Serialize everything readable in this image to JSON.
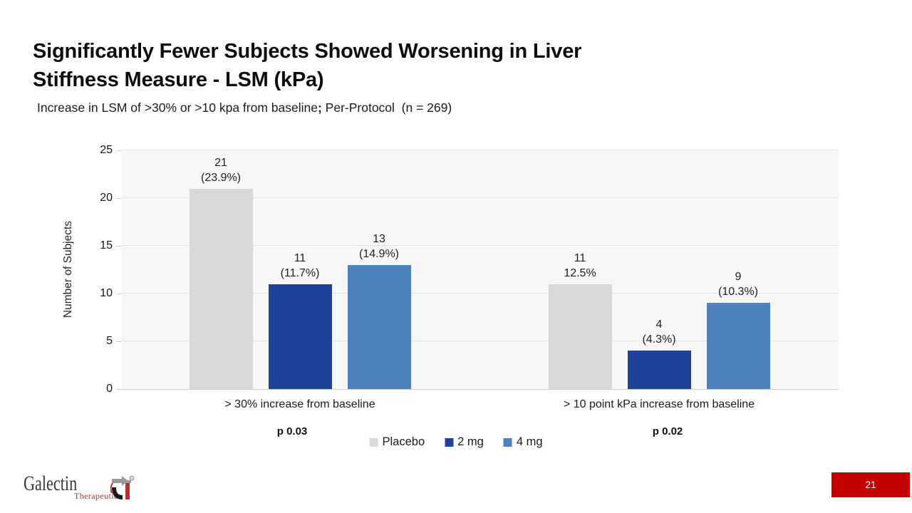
{
  "slide": {
    "title_line1": "Significantly Fewer Subjects Showed Worsening in Liver",
    "title_line2": "Stiffness Measure - LSM (kPa)",
    "subtitle_main": "Increase in LSM of >30% or >10 kpa from baseline",
    "subtitle_semicolon": ";",
    "subtitle_rest": " Per-Protocol  (n = 269)",
    "page_number": "21"
  },
  "logo": {
    "name": "Galectin",
    "sub": "Therapeutics",
    "registered": "®"
  },
  "colors": {
    "placebo": "#d9d9d9",
    "dose_2mg": "#1e4499",
    "dose_4mg": "#4f81bd",
    "page_box_red": "#c40000",
    "logo_red": "#b03232",
    "plot_background": "#f7f7f7",
    "gridline": "#e3e3e3"
  },
  "chart_data": {
    "type": "bar",
    "title": "",
    "xlabel": "",
    "ylabel": "Number of Subjects",
    "ylim": [
      0,
      25
    ],
    "yticks": [
      0,
      5,
      10,
      15,
      20,
      25
    ],
    "grid": true,
    "legend_position": "bottom-center",
    "categories": [
      "> 30% increase from baseline",
      "> 10 point kPa increase from baseline"
    ],
    "p_values": [
      "p 0.03",
      "p 0.02"
    ],
    "series": [
      {
        "name": "Placebo",
        "color": "#d9d9d9",
        "values": [
          21,
          11
        ],
        "labels": [
          [
            "21",
            "(23.9%)"
          ],
          [
            "11",
            "12.5%"
          ]
        ]
      },
      {
        "name": "2 mg",
        "color": "#1e4499",
        "values": [
          11,
          4
        ],
        "labels": [
          [
            "11",
            "(11.7%)"
          ],
          [
            "4",
            "(4.3%)"
          ]
        ]
      },
      {
        "name": "4 mg",
        "color": "#4f81bd",
        "values": [
          13,
          9
        ],
        "labels": [
          [
            "13",
            "(14.9%)"
          ],
          [
            "9",
            "(10.3%)"
          ]
        ]
      }
    ]
  }
}
